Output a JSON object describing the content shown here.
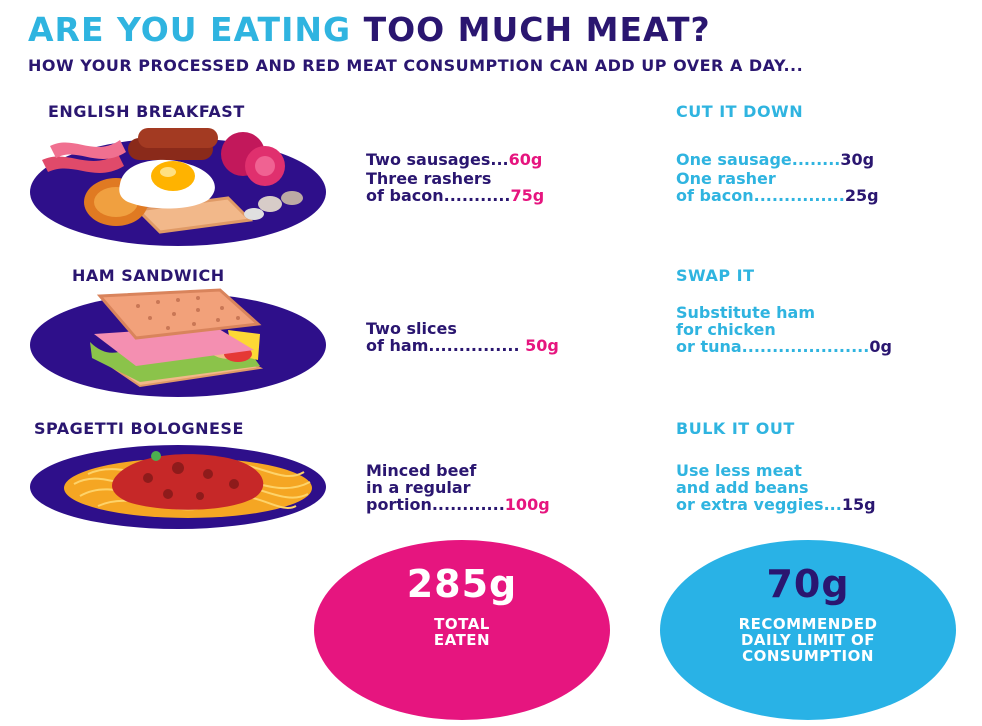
{
  "title": {
    "part1": "ARE YOU EATING",
    "part2": "TOO MUCH MEAT?"
  },
  "subtitle": "HOW YOUR PROCESSED AND RED MEAT CONSUMPTION CAN ADD UP OVER A DAY...",
  "meals": [
    {
      "name": "ENGLISH BREAKFAST",
      "icon": "english-breakfast-icon",
      "items": [
        {
          "text": "Two sausages...",
          "value": "60g"
        },
        {
          "text_line1": "Three rashers",
          "text_line2": "of bacon...........",
          "value": "75g"
        }
      ],
      "tip_title": "CUT IT DOWN",
      "tips": [
        {
          "text": "One sausage........",
          "value": "30g"
        },
        {
          "text_line1": "One rasher",
          "text_line2": "of bacon...............",
          "value": "25g"
        }
      ]
    },
    {
      "name": "HAM SANDWICH",
      "icon": "ham-sandwich-icon",
      "items": [
        {
          "text_line1": "Two slices",
          "text_line2": "of ham...............",
          "value": "50g"
        }
      ],
      "tip_title": "SWAP IT",
      "tips": [
        {
          "text_line1": "Substitute ham",
          "text_line2": "for chicken",
          "text_line3": "or tuna.....................",
          "value": "0g"
        }
      ]
    },
    {
      "name": "SPAGETTI BOLOGNESE",
      "icon": "spaghetti-bolognese-icon",
      "items": [
        {
          "text_line1": "Minced beef",
          "text_line2": "in a regular",
          "text_line3": "portion............",
          "value": "100g"
        }
      ],
      "tip_title": "BULK IT OUT",
      "tips": [
        {
          "text_line1": "Use less meat",
          "text_line2": "and add beans",
          "text_line3": "or extra veggies...",
          "value": "15g"
        }
      ]
    }
  ],
  "total": {
    "value": "285g",
    "label_line1": "TOTAL",
    "label_line2": "EATEN"
  },
  "recommended": {
    "value": "70g",
    "label_line1": "RECOMMENDED",
    "label_line2": "DAILY LIMIT OF",
    "label_line3": "CONSUMPTION"
  },
  "colors": {
    "navy": "#2a1670",
    "cyan": "#2fb4e0",
    "pink": "#e6157f",
    "plate": "#2e0f8a"
  }
}
